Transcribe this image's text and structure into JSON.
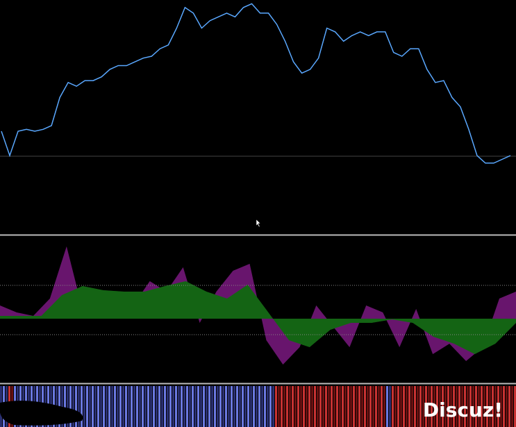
{
  "watermark": "Discuz!",
  "chart_data": [
    {
      "type": "line",
      "color": "#5aa8ff",
      "ylim": [
        0,
        100
      ],
      "values": [
        30,
        17,
        30,
        31,
        30,
        31,
        33,
        48,
        56,
        54,
        57,
        57,
        59,
        63,
        65,
        65,
        67,
        69,
        70,
        74,
        76,
        85,
        96,
        93,
        85,
        89,
        91,
        93,
        91,
        96,
        98,
        93,
        93,
        87,
        78,
        67,
        61,
        63,
        69,
        85,
        83,
        78,
        81,
        83,
        81,
        83,
        83,
        72,
        70,
        74,
        74,
        63,
        56,
        57,
        48,
        43,
        31,
        17,
        13,
        13,
        15,
        17
      ]
    },
    {
      "type": "area",
      "ylim": [
        -93,
        119
      ],
      "levels": [
        48,
        -23
      ],
      "series": [
        {
          "color": "#a020a8",
          "values": [
            19,
            9,
            4,
            29,
            104,
            9,
            29,
            14,
            19,
            54,
            39,
            74,
            -6,
            39,
            69,
            79,
            -31,
            -66,
            -41,
            19,
            -11,
            -41,
            19,
            9,
            -41,
            14,
            -51,
            -36,
            -61,
            -41,
            29,
            39
          ]
        },
        {
          "color": "#1e9a1e",
          "values": [
            4,
            4,
            4,
            34,
            47,
            41,
            39,
            39,
            47,
            54,
            39,
            29,
            49,
            9,
            -31,
            -41,
            -16,
            -6,
            -6,
            -1,
            -6,
            -26,
            -36,
            -51,
            -36,
            -6
          ]
        }
      ]
    }
  ]
}
